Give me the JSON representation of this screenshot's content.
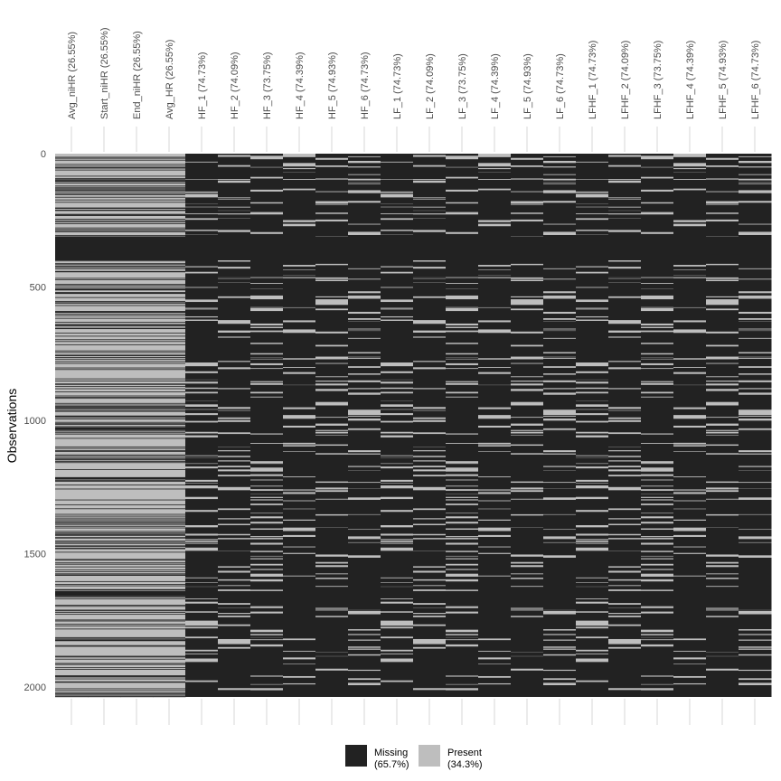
{
  "colors": {
    "missing": "#222222",
    "present": "#bebebe",
    "grid": "#ebebeb"
  },
  "chart_data": {
    "type": "heatmap",
    "title": "",
    "xlabel": "",
    "ylabel": "Observations",
    "n_observations": 2037,
    "columns": [
      "Avg_niHR (26.55%)",
      "Start_niHR (26.55%)",
      "End_niHR (26.55%)",
      "Avg_HR (26.55%)",
      "HF_1 (74.73%)",
      "HF_2 (74.09%)",
      "HF_3 (73.75%)",
      "HF_4 (74.39%)",
      "HF_5 (74.93%)",
      "HF_6 (74.73%)",
      "LF_1 (74.73%)",
      "LF_2 (74.09%)",
      "LF_3 (73.75%)",
      "LF_4 (74.39%)",
      "LF_5 (74.93%)",
      "LF_6 (74.73%)",
      "LFHF_1 (74.73%)",
      "LFHF_2 (74.09%)",
      "LFHF_3 (73.75%)",
      "LFHF_4 (74.39%)",
      "LFHF_5 (74.93%)",
      "LFHF_6 (74.73%)"
    ],
    "missing_pct": [
      26.55,
      26.55,
      26.55,
      26.55,
      74.73,
      74.09,
      73.75,
      74.39,
      74.93,
      74.73,
      74.73,
      74.09,
      73.75,
      74.39,
      74.93,
      74.73,
      74.73,
      74.09,
      73.75,
      74.39,
      74.93,
      74.73
    ],
    "missing_blocks": [
      [
        310,
        400
      ],
      [
        1213,
        1222
      ],
      [
        1640,
        1660
      ]
    ],
    "y_ticks": [
      "0",
      "500",
      "1000",
      "1500",
      "2000"
    ],
    "y_tick_values": [
      0,
      500,
      1000,
      1500,
      2000
    ],
    "legend": [
      {
        "label": "Missing",
        "pct": "(65.7%)"
      },
      {
        "label": "Present",
        "pct": "(34.3%)"
      }
    ],
    "legend_position": "bottom"
  }
}
